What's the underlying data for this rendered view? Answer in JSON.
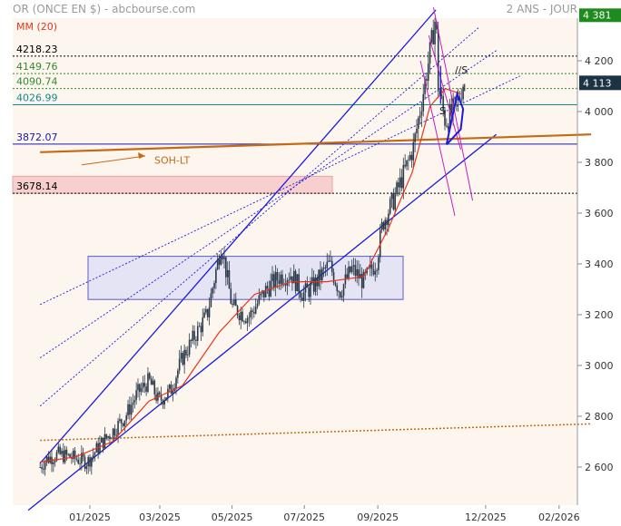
{
  "header": {
    "title": "OR (ONCE EN $) - abcbourse.com",
    "period": "2 ANS - JOUR",
    "ma_label": "MM (20)"
  },
  "chart_data": {
    "type": "candlestick",
    "title": "OR (ONCE EN $) - abcbourse.com",
    "y_ticks": [
      2600,
      2800,
      3000,
      3200,
      3400,
      3600,
      3800,
      4000,
      4200
    ],
    "y_tick_labels": [
      "2 600",
      "2 800",
      "3 000",
      "3 200",
      "3 400",
      "3 600",
      "3 800",
      "4 000",
      "4 200"
    ],
    "ylim": [
      2570,
      4425
    ],
    "x_ticks": [
      "2025-01-01",
      "2025-03-01",
      "2025-05-01",
      "2025-07-01",
      "2025-09-01",
      "2025-12-01",
      "2026-02-01"
    ],
    "x_tick_labels": [
      "01/2025",
      "03/2025",
      "05/2025",
      "07/2025",
      "09/2025",
      "12/2025",
      "02/2026"
    ],
    "last_price": 4113,
    "last_price_label": "4 113",
    "high_badge_label": "4 381",
    "levels": [
      {
        "value": 4218.23,
        "label": "4218.23",
        "color": "#000000",
        "style": "dotted"
      },
      {
        "value": 4149.76,
        "label": "4149.76",
        "color": "#2e8b2e",
        "style": "dotted"
      },
      {
        "value": 4090.74,
        "label": "4090.74",
        "color": "#2e8b2e",
        "style": "dotted"
      },
      {
        "value": 4026.99,
        "label": "4026.99",
        "color": "#138a8a",
        "style": "solid"
      },
      {
        "value": 3872.07,
        "label": "3872.07",
        "color": "#1a1aa8",
        "style": "solid"
      },
      {
        "value": 3678.14,
        "label": "3678.14",
        "color": "#000000",
        "style": "dotted"
      }
    ],
    "annotations": {
      "soh_lt": "SOH-LT",
      "s_left": "S",
      "s_right": "//S",
      "i_mark": "I"
    },
    "price_series": [
      [
        "2024-11-15",
        2570
      ],
      [
        "2024-11-25",
        2630
      ],
      [
        "2024-12-05",
        2650
      ],
      [
        "2024-12-15",
        2640
      ],
      [
        "2024-12-30",
        2620
      ],
      [
        "2025-01-10",
        2690
      ],
      [
        "2025-01-20",
        2740
      ],
      [
        "2025-01-31",
        2800
      ],
      [
        "2025-02-10",
        2890
      ],
      [
        "2025-02-20",
        2940
      ],
      [
        "2025-02-28",
        2860
      ],
      [
        "2025-03-10",
        2900
      ],
      [
        "2025-03-20",
        3030
      ],
      [
        "2025-03-31",
        3120
      ],
      [
        "2025-04-10",
        3200
      ],
      [
        "2025-04-22",
        3480
      ],
      [
        "2025-05-01",
        3230
      ],
      [
        "2025-05-15",
        3190
      ],
      [
        "2025-05-30",
        3300
      ],
      [
        "2025-06-10",
        3350
      ],
      [
        "2025-06-20",
        3360
      ],
      [
        "2025-06-30",
        3280
      ],
      [
        "2025-07-10",
        3320
      ],
      [
        "2025-07-22",
        3400
      ],
      [
        "2025-07-31",
        3290
      ],
      [
        "2025-08-10",
        3380
      ],
      [
        "2025-08-20",
        3330
      ],
      [
        "2025-08-31",
        3410
      ],
      [
        "2025-09-05",
        3560
      ],
      [
        "2025-09-15",
        3660
      ],
      [
        "2025-09-25",
        3780
      ],
      [
        "2025-10-01",
        3860
      ],
      [
        "2025-10-08",
        4040
      ],
      [
        "2025-10-15",
        4230
      ],
      [
        "2025-10-20",
        4381
      ],
      [
        "2025-10-22",
        4100
      ],
      [
        "2025-10-28",
        3960
      ],
      [
        "2025-11-03",
        4000
      ],
      [
        "2025-11-08",
        4040
      ],
      [
        "2025-11-12",
        4113
      ]
    ],
    "ma20_series": [
      [
        "2024-11-20",
        2620
      ],
      [
        "2024-12-20",
        2640
      ],
      [
        "2025-01-20",
        2700
      ],
      [
        "2025-02-20",
        2860
      ],
      [
        "2025-03-20",
        2920
      ],
      [
        "2025-04-20",
        3130
      ],
      [
        "2025-05-20",
        3280
      ],
      [
        "2025-06-20",
        3330
      ],
      [
        "2025-07-20",
        3330
      ],
      [
        "2025-08-20",
        3350
      ],
      [
        "2025-09-10",
        3540
      ],
      [
        "2025-09-30",
        3760
      ],
      [
        "2025-10-15",
        4020
      ],
      [
        "2025-10-28",
        4090
      ],
      [
        "2025-11-10",
        4070
      ]
    ]
  },
  "colors": {
    "candle": "#2b3a4a",
    "ma": "#e8331a",
    "channel": "#1a1ae0",
    "soh": "#c46a14",
    "fan": "#c41ec4",
    "badge_green": "#1f8a1f",
    "badge_dark": "#1c3344",
    "zone_pink": "#f8cfcf",
    "zone_blue": "#e4e4f4",
    "plot_bg": "#fdf6ee"
  }
}
